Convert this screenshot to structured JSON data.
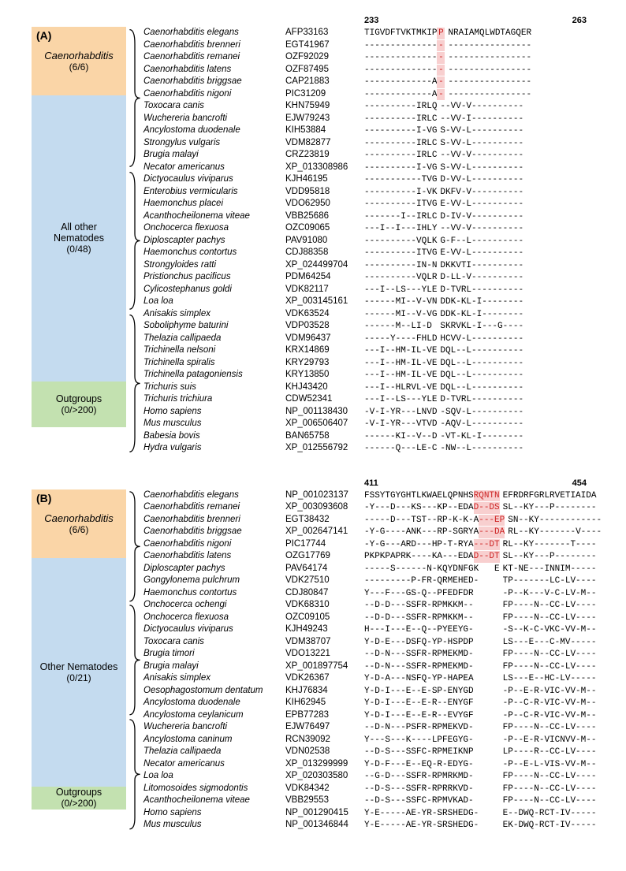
{
  "panelA": {
    "panel_letter": "(A)",
    "pos_start": "233",
    "pos_end": "263",
    "highlight_width_ch": 1,
    "groups": [
      {
        "label_style": "genus",
        "label": "Caenorhabditis",
        "count": "(6/6)",
        "background": "#fad5a7",
        "rows": [
          {
            "species": "Caenorhabditis elegans",
            "acc": "AFP33163",
            "seq1": "TIGVDFTVKTMKIP",
            "hl": "P",
            "seq2": "NRAIAMQLWDTAGQER"
          },
          {
            "species": "Caenorhabditis brenneri",
            "acc": "EGT41967",
            "seq1": "--------------",
            "hl": "-",
            "seq2": "----------------"
          },
          {
            "species": "Caenorhabditis remanei",
            "acc": "OZF92029",
            "seq1": "--------------",
            "hl": "-",
            "seq2": "----------------"
          },
          {
            "species": "Caenorhabditis latens",
            "acc": "OZF87495",
            "seq1": "--------------",
            "hl": "-",
            "seq2": "----------------"
          },
          {
            "species": "Caenorhabditis briggsae",
            "acc": "CAP21883",
            "seq1": "-------------A",
            "hl": "-",
            "seq2": "----------------"
          },
          {
            "species": "Caenorhabditis nigoni",
            "acc": "PIC31209",
            "seq1": "-------------A",
            "hl": "-",
            "seq2": "----------------"
          }
        ]
      },
      {
        "label_style": "plain",
        "label": "All other\nNematodes",
        "count": "(0/48)",
        "background": "#c4dbef",
        "rows": [
          {
            "species": "Toxocara canis",
            "acc": "KHN75949",
            "seq1": "----------IRLQ",
            "seq2": "--VV-V----------"
          },
          {
            "species": "Wuchereria bancrofti",
            "acc": "EJW79243",
            "seq1": "----------IRLC",
            "seq2": "--VV-I----------"
          },
          {
            "species": "Ancylostoma duodenale",
            "acc": "KIH53884",
            "seq1": "----------I-VG",
            "seq2": "S-VV-L----------"
          },
          {
            "species": "Strongylus vulgaris",
            "acc": "VDM82877",
            "seq1": "----------IRLC",
            "seq2": "S-VV-L----------"
          },
          {
            "species": "Brugia malayi",
            "acc": "CRZ23819",
            "seq1": "----------IRLC",
            "seq2": "--VV-V----------"
          },
          {
            "species": "Necator americanus",
            "acc": "XP_013308986",
            "seq1": "----------I-VG",
            "seq2": "S-VV-L----------"
          },
          {
            "species": "Dictyocaulus viviparus",
            "acc": "KJH46195",
            "seq1": "-----------TVG",
            "seq2": "D-VV-L----------"
          },
          {
            "species": "Enterobius vermicularis",
            "acc": "VDD95818",
            "seq1": "----------I-VK",
            "seq2": "DKFV-V----------"
          },
          {
            "species": "Haemonchus placei",
            "acc": "VDO62950",
            "seq1": "----------ITVG",
            "seq2": "E-VV-L----------"
          },
          {
            "species": "Acanthocheilonema viteae",
            "acc": "VBB25686",
            "seq1": "-------I--IRLC",
            "seq2": "D-IV-V----------"
          },
          {
            "species": "Onchocerca flexuosa",
            "acc": "OZC09065",
            "seq1": "---I--I---IHLY",
            "seq2": "--VV-V----------"
          },
          {
            "species": "Diploscapter pachys",
            "acc": "PAV91080",
            "seq1": "----------VQLK",
            "seq2": "G-F--L----------"
          },
          {
            "species": "Haemonchus contortus",
            "acc": "CDJ88358",
            "seq1": "----------ITVG",
            "seq2": "E-VV-L----------"
          },
          {
            "species": "Strongyloides ratti",
            "acc": "XP_024499704",
            "seq1": "----------IN-N",
            "seq2": "DKKVTI----------"
          },
          {
            "species": "Pristionchus pacificus",
            "acc": "PDM64254",
            "seq1": "----------VQLR",
            "seq2": "D-LL-V----------"
          },
          {
            "species": "Cylicostephanus goldi",
            "acc": "VDK82117",
            "seq1": "---I--LS---YLE",
            "seq2": "D-TVRL----------"
          },
          {
            "species": "Loa loa",
            "acc": "XP_003145161",
            "seq1": "------MI--V-VN",
            "seq2": "DDK-KL-I--------"
          },
          {
            "species": "Anisakis simplex",
            "acc": "VDK63524",
            "seq1": "------MI--V-VG",
            "seq2": "DDK-KL-I--------"
          },
          {
            "species": "Soboliphyme baturini",
            "acc": "VDP03528",
            "seq1": "------M--LI-D ",
            "seq2": "SKRVKL-I---G----"
          },
          {
            "species": "Thelazia callipaeda",
            "acc": "VDM96437",
            "seq1": "-----Y----FHLD",
            "seq2": "HCVV-L----------"
          },
          {
            "species": "Trichinella nelsoni",
            "acc": "KRX14869",
            "seq1": "---I--HM-IL-VE",
            "seq2": "DQL--L----------"
          },
          {
            "species": "Trichinella spiralis",
            "acc": "KRY29793",
            "seq1": "---I--HM-IL-VE",
            "seq2": "DQL--L----------"
          },
          {
            "species": "Trichinella patagoniensis",
            "acc": "KRY13850",
            "seq1": "---I--HM-IL-VE",
            "seq2": "DQL--L----------"
          },
          {
            "species": "Trichuris suis",
            "acc": "KHJ43420",
            "seq1": "---I--HLRVL-VE",
            "seq2": "DQL--L----------"
          },
          {
            "species": "Trichuris trichiura",
            "acc": "CDW52341",
            "seq1": "---I--LS---YLE",
            "seq2": "D-TVRL----------"
          }
        ]
      },
      {
        "label_style": "plain",
        "label": "Outgroups",
        "count": "(0/>200)",
        "background": "#c3e1b0",
        "rows": [
          {
            "species": "Homo sapiens",
            "acc": "NP_001138430",
            "seq1": "-V-I-YR---LNVD",
            "seq2": "-SQV-L----------"
          },
          {
            "species": "Mus musculus",
            "acc": "XP_006506407",
            "seq1": "-V-I-YR---VTVD",
            "seq2": "-AQV-L----------"
          },
          {
            "species": "Babesia bovis",
            "acc": "BAN65758",
            "seq1": "------KI--V--D",
            "seq2": "-VT-KL-I--------"
          },
          {
            "species": "Hydra vulgaris",
            "acc": "XP_012556792",
            "seq1": "------Q---LE-C",
            "seq2": "-NW--L----------"
          }
        ]
      }
    ]
  },
  "panelB": {
    "panel_letter": "(B)",
    "pos_start": "411",
    "pos_end": "454",
    "highlight_width_ch": 5,
    "groups": [
      {
        "label_style": "genus",
        "label": "Caenorhabditis",
        "count": "(6/6)",
        "background": "#fad5a7",
        "rows": [
          {
            "species": "Caenorhabditis elegans",
            "acc": "NP_001023137",
            "seq1": "FSSYTGYGHTLKWAELQPNHS",
            "hl": "RQNTN",
            "seq2": "EFRDRFGRLRVETIAIDA"
          },
          {
            "species": "Caenorhabditis remanei",
            "acc": "XP_003093608",
            "seq1": "-Y---D---KS---KP--EDA",
            "hl": "D--DS",
            "seq2": "SL--KY---P--------"
          },
          {
            "species": "Caenorhabditis brenneri",
            "acc": "EGT38432",
            "seq1": "-----D---TST--RP-K-K-A",
            "hl": "---EP",
            "seq2": "SN--KY------------"
          },
          {
            "species": "Caenorhabditis briggsae",
            "acc": "XP_002647141",
            "seq1": "-Y-G----ANK---RP-SGRYA",
            "hl": "---DA",
            "seq2": "RL--KY-------V----"
          },
          {
            "species": "Caenorhabditis nigoni",
            "acc": "PIC17744",
            "seq1": "-Y-G---ARD---HP-T-RYA",
            "hl": "---DT",
            "seq2": "RL--KY-------T----"
          },
          {
            "species": "Caenorhabditis latens",
            "acc": "OZG17769",
            "seq1": "PKPKPAPRK----KA---EDA",
            "hl": "D--DT",
            "seq2": "SL--KY---P--------"
          }
        ]
      },
      {
        "label_style": "plain",
        "label": "Other Nematodes",
        "count": "(0/21)",
        "background": "#c4dbef",
        "rows": [
          {
            "species": "Diploscapter pachys",
            "acc": "PAV64174",
            "seq1": "-----S------N-KQYDNFGK   E",
            "seq2": "KT-NE---INNIM-----"
          },
          {
            "species": "Gongylonema pulchrum",
            "acc": "VDK27510",
            "seq1": "---------P-FR-QRMEHED-    ",
            "seq2": "TP-------LC-LV----"
          },
          {
            "species": "Haemonchus contortus",
            "acc": "CDJ80847",
            "seq1": "Y---F---GS-Q--PFEDFDR     ",
            "seq2": "-P--K---V-C-LV-M--"
          },
          {
            "species": "Onchocerca ochengi",
            "acc": "VDK68310",
            "seq1": "--D-D---SSFR-RPMKKM--     ",
            "seq2": "FP----N--CC-LV----"
          },
          {
            "species": "Onchocerca flexuosa",
            "acc": "OZC09105",
            "seq1": "--D-D---SSFR-RPMKKM--     ",
            "seq2": "FP----N--CC-LV----"
          },
          {
            "species": "Dictyocaulus viviparus",
            "acc": "KJH49243",
            "seq1": "H---I---E--Q--PYEEYG-     ",
            "seq2": "-S--K-C-VKC-VV-M--"
          },
          {
            "species": "Toxocara canis",
            "acc": "VDM38707",
            "seq1": "Y-D-E---DSFQ-YP-HSPDP     ",
            "seq2": "LS---E---C-MV-----"
          },
          {
            "species": "Brugia timori",
            "acc": "VDO13221",
            "seq1": "--D-N---SSFR-RPMEKMD-     ",
            "seq2": "FP----N--CC-LV----"
          },
          {
            "species": "Brugia malayi",
            "acc": "XP_001897754",
            "seq1": "--D-N---SSFR-RPMEKMD-     ",
            "seq2": "FP----N--CC-LV----"
          },
          {
            "species": "Anisakis simplex",
            "acc": "VDK26367",
            "seq1": "Y-D-A---NSFQ-YP-HAPEA     ",
            "seq2": "LS---E--HC-LV-----"
          },
          {
            "species": "Oesophagostomum dentatum",
            "acc": "KHJ76834",
            "seq1": "Y-D-I---E--E-SP-ENYGD     ",
            "seq2": "-P--E-R-VIC-VV-M--"
          },
          {
            "species": "Ancylostoma duodenale",
            "acc": "KIH62945",
            "seq1": "Y-D-I---E--E-R--ENYGF     ",
            "seq2": "-P--C-R-VIC-VV-M--"
          },
          {
            "species": "Ancylostoma ceylanicum",
            "acc": "EPB77283",
            "seq1": "Y-D-I---E--E-R--EVYGF     ",
            "seq2": "-P--C-R-VIC-VV-M--"
          },
          {
            "species": "Wuchereria bancrofti",
            "acc": "EJW76497",
            "seq1": "--D-N---PSFR-RPMEKVD-     ",
            "seq2": "FP----N--CC-LV----"
          },
          {
            "species": "Ancylostoma caninum",
            "acc": "RCN39092",
            "seq1": "Y---S---K----LPFEGYG-     ",
            "seq2": "-P--E-R-VICNVV-M--"
          },
          {
            "species": "Thelazia callipaeda",
            "acc": "VDN02538",
            "seq1": "--D-S---SSFC-RPMEIKNP     ",
            "seq2": "LP----R--CC-LV----"
          },
          {
            "species": "Necator americanus",
            "acc": "XP_013299999",
            "seq1": "Y-D-F---E--EQ-R-EDYG-     ",
            "seq2": "-P--E-L-VIS-VV-M--"
          },
          {
            "species": "Loa loa",
            "acc": "XP_020303580",
            "seq1": "--G-D---SSFR-RPMRKMD-     ",
            "seq2": "FP----N--CC-LV----"
          },
          {
            "species": "Litomosoides sigmodontis",
            "acc": "VDK84342",
            "seq1": "--D-S---SSFR-RPRRKVD-     ",
            "seq2": "FP----N--CC-LV----"
          },
          {
            "species": "Acanthocheilonema viteae",
            "acc": "VBB29553",
            "seq1": "--D-S---SSFC-RPMVKAD-     ",
            "seq2": "FP----N--CC-LV----"
          }
        ]
      },
      {
        "label_style": "plain",
        "label": "Outgroups",
        "count": "(0/>200)",
        "background": "#c3e1b0",
        "rows": [
          {
            "species": "Homo sapiens",
            "acc": "NP_001290415",
            "seq1": "Y-E-----AE-YR-SRSHEDG-    ",
            "seq2": "E--DWQ-RCT-IV-----"
          },
          {
            "species": "Mus musculus",
            "acc": "NP_001346844",
            "seq1": "Y-E-----AE-YR-SRSHEDG-    ",
            "seq2": "EK-DWQ-RCT-IV-----"
          }
        ]
      }
    ]
  }
}
